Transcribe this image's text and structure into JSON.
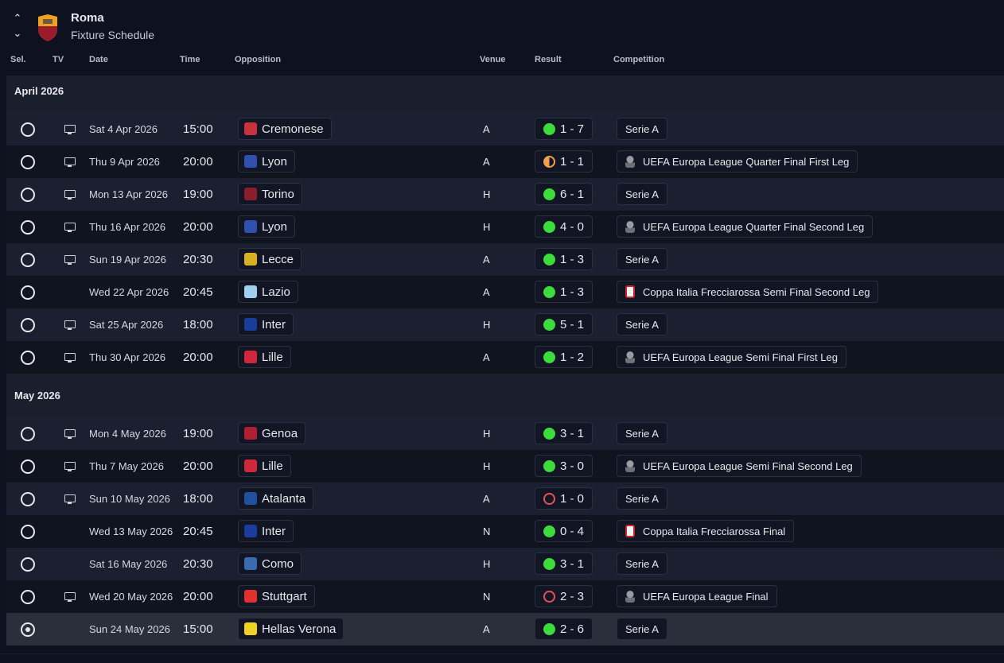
{
  "header": {
    "club": "Roma",
    "subtitle": "Fixture Schedule"
  },
  "columns": {
    "sel": "Sel.",
    "tv": "TV",
    "date": "Date",
    "time": "Time",
    "opposition": "Opposition",
    "venue": "Venue",
    "result": "Result",
    "competition": "Competition"
  },
  "colors": {
    "win": "#3ddc3d",
    "draw": "#f0a050",
    "loss": "#e8505a",
    "background": "#0d1120"
  },
  "months": [
    {
      "label": "April 2026",
      "fixtures": [
        {
          "tv": true,
          "date": "Sat 4 Apr 2026",
          "time": "15:00",
          "opp": "Cremonese",
          "badge": "#c8323c",
          "venue": "A",
          "outcome": "W",
          "score": "1 - 7",
          "comp": "Serie A",
          "comp_icon": ""
        },
        {
          "tv": true,
          "date": "Thu 9 Apr 2026",
          "time": "20:00",
          "opp": "Lyon",
          "badge": "#3050b0",
          "venue": "A",
          "outcome": "D",
          "score": "1 - 1",
          "comp": "UEFA Europa League Quarter Final First Leg",
          "comp_icon": "uel"
        },
        {
          "tv": true,
          "date": "Mon 13 Apr 2026",
          "time": "19:00",
          "opp": "Torino",
          "badge": "#8a1e2a",
          "venue": "H",
          "outcome": "W",
          "score": "6 - 1",
          "comp": "Serie A",
          "comp_icon": ""
        },
        {
          "tv": true,
          "date": "Thu 16 Apr 2026",
          "time": "20:00",
          "opp": "Lyon",
          "badge": "#3050b0",
          "venue": "H",
          "outcome": "W",
          "score": "4 - 0",
          "comp": "UEFA Europa League Quarter Final Second Leg",
          "comp_icon": "uel"
        },
        {
          "tv": true,
          "date": "Sun 19 Apr 2026",
          "time": "20:30",
          "opp": "Lecce",
          "badge": "#d8b020",
          "venue": "A",
          "outcome": "W",
          "score": "1 - 3",
          "comp": "Serie A",
          "comp_icon": ""
        },
        {
          "tv": false,
          "date": "Wed 22 Apr 2026",
          "time": "20:45",
          "opp": "Lazio",
          "badge": "#9fcfee",
          "venue": "A",
          "outcome": "W",
          "score": "1 - 3",
          "comp": "Coppa Italia Frecciarossa Semi Final Second Leg",
          "comp_icon": "cop"
        },
        {
          "tv": true,
          "date": "Sat 25 Apr 2026",
          "time": "18:00",
          "opp": "Inter",
          "badge": "#1a3c9a",
          "venue": "H",
          "outcome": "W",
          "score": "5 - 1",
          "comp": "Serie A",
          "comp_icon": ""
        },
        {
          "tv": true,
          "date": "Thu 30 Apr 2026",
          "time": "20:00",
          "opp": "Lille",
          "badge": "#d0283a",
          "venue": "A",
          "outcome": "W",
          "score": "1 - 2",
          "comp": "UEFA Europa League Semi Final First Leg",
          "comp_icon": "uel"
        }
      ]
    },
    {
      "label": "May 2026",
      "fixtures": [
        {
          "tv": true,
          "date": "Mon 4 May 2026",
          "time": "19:00",
          "opp": "Genoa",
          "badge": "#b02030",
          "venue": "H",
          "outcome": "W",
          "score": "3 - 1",
          "comp": "Serie A",
          "comp_icon": ""
        },
        {
          "tv": true,
          "date": "Thu 7 May 2026",
          "time": "20:00",
          "opp": "Lille",
          "badge": "#d0283a",
          "venue": "H",
          "outcome": "W",
          "score": "3 - 0",
          "comp": "UEFA Europa League Semi Final Second Leg",
          "comp_icon": "uel"
        },
        {
          "tv": true,
          "date": "Sun 10 May 2026",
          "time": "18:00",
          "opp": "Atalanta",
          "badge": "#2050a0",
          "venue": "A",
          "outcome": "L",
          "score": "1 - 0",
          "comp": "Serie A",
          "comp_icon": ""
        },
        {
          "tv": false,
          "date": "Wed 13 May 2026",
          "time": "20:45",
          "opp": "Inter",
          "badge": "#1a3c9a",
          "venue": "N",
          "outcome": "W",
          "score": "0 - 4",
          "comp": "Coppa Italia Frecciarossa Final",
          "comp_icon": "cop"
        },
        {
          "tv": false,
          "date": "Sat 16 May 2026",
          "time": "20:30",
          "opp": "Como",
          "badge": "#3a6ab0",
          "venue": "H",
          "outcome": "W",
          "score": "3 - 1",
          "comp": "Serie A",
          "comp_icon": ""
        },
        {
          "tv": true,
          "date": "Wed 20 May 2026",
          "time": "20:00",
          "opp": "Stuttgart",
          "badge": "#e03030",
          "venue": "N",
          "outcome": "L",
          "score": "2 - 3",
          "comp": "UEFA Europa League Final",
          "comp_icon": "uel"
        },
        {
          "tv": false,
          "date": "Sun 24 May 2026",
          "time": "15:00",
          "opp": "Hellas Verona",
          "badge": "#f0d020",
          "venue": "A",
          "outcome": "W",
          "score": "2 - 6",
          "comp": "Serie A",
          "comp_icon": "",
          "selected": true
        }
      ]
    }
  ]
}
